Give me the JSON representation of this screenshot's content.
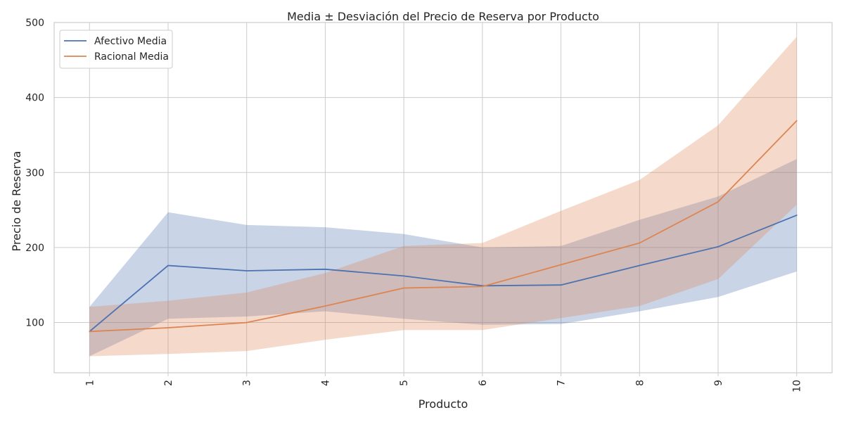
{
  "chart_data": {
    "type": "line",
    "title": "Media ± Desviación del Precio de Reserva por Producto",
    "xlabel": "Producto",
    "ylabel": "Precio de Reserva",
    "x": [
      1,
      2,
      3,
      4,
      5,
      6,
      7,
      8,
      9,
      10
    ],
    "xticks": [
      "1",
      "2",
      "3",
      "4",
      "5",
      "6",
      "7",
      "8",
      "9",
      "10"
    ],
    "yticks": [
      100,
      200,
      300,
      400,
      500
    ],
    "ylim": [
      33,
      500
    ],
    "grid": true,
    "legend_placement": "top-left",
    "series": [
      {
        "name": "Afectivo Media",
        "color": "#4c72b0",
        "values": [
          88,
          176,
          169,
          171,
          162,
          149,
          150,
          176,
          201,
          243
        ],
        "lower": [
          55,
          105,
          108,
          115,
          105,
          97,
          98,
          115,
          134,
          168
        ],
        "upper": [
          121,
          247,
          230,
          227,
          218,
          200,
          202,
          237,
          268,
          318
        ]
      },
      {
        "name": "Racional Media",
        "color": "#dd8452",
        "values": [
          88,
          93,
          100,
          122,
          146,
          148,
          177,
          206,
          261,
          369
        ],
        "lower": [
          55,
          58,
          62,
          77,
          90,
          90,
          106,
          122,
          158,
          257
        ],
        "upper": [
          121,
          129,
          140,
          166,
          202,
          206,
          249,
          290,
          363,
          481
        ]
      }
    ]
  }
}
